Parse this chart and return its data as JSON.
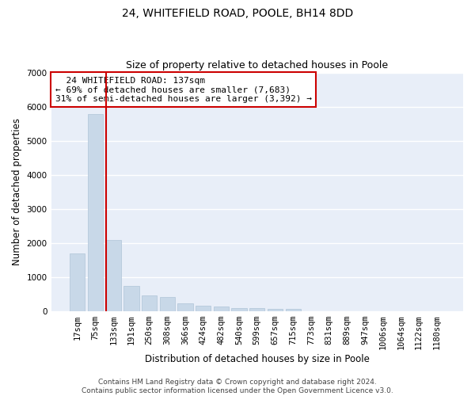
{
  "title1": "24, WHITEFIELD ROAD, POOLE, BH14 8DD",
  "title2": "Size of property relative to detached houses in Poole",
  "xlabel": "Distribution of detached houses by size in Poole",
  "ylabel": "Number of detached properties",
  "categories": [
    "17sqm",
    "75sqm",
    "133sqm",
    "191sqm",
    "250sqm",
    "308sqm",
    "366sqm",
    "424sqm",
    "482sqm",
    "540sqm",
    "599sqm",
    "657sqm",
    "715sqm",
    "773sqm",
    "831sqm",
    "889sqm",
    "947sqm",
    "1006sqm",
    "1064sqm",
    "1122sqm",
    "1180sqm"
  ],
  "values": [
    1700,
    5800,
    2100,
    750,
    450,
    420,
    220,
    170,
    130,
    100,
    80,
    70,
    60,
    0,
    0,
    0,
    0,
    0,
    0,
    0,
    0
  ],
  "bar_color": "#c8d8e8",
  "bar_edge_color": "#b0c4d8",
  "highlight_index": 2,
  "highlight_line_color": "#cc0000",
  "annotation_text": "  24 WHITEFIELD ROAD: 137sqm\n← 69% of detached houses are smaller (7,683)\n31% of semi-detached houses are larger (3,392) →",
  "annotation_box_color": "#ffffff",
  "annotation_box_edge_color": "#cc0000",
  "ylim": [
    0,
    7000
  ],
  "yticks": [
    0,
    1000,
    2000,
    3000,
    4000,
    5000,
    6000,
    7000
  ],
  "background_color": "#ffffff",
  "plot_bg_color": "#e8eef8",
  "grid_color": "#ffffff",
  "footer_text": "Contains HM Land Registry data © Crown copyright and database right 2024.\nContains public sector information licensed under the Open Government Licence v3.0.",
  "title_fontsize": 10,
  "subtitle_fontsize": 9,
  "axis_label_fontsize": 8.5,
  "tick_fontsize": 7.5,
  "annotation_fontsize": 8,
  "footer_fontsize": 6.5
}
